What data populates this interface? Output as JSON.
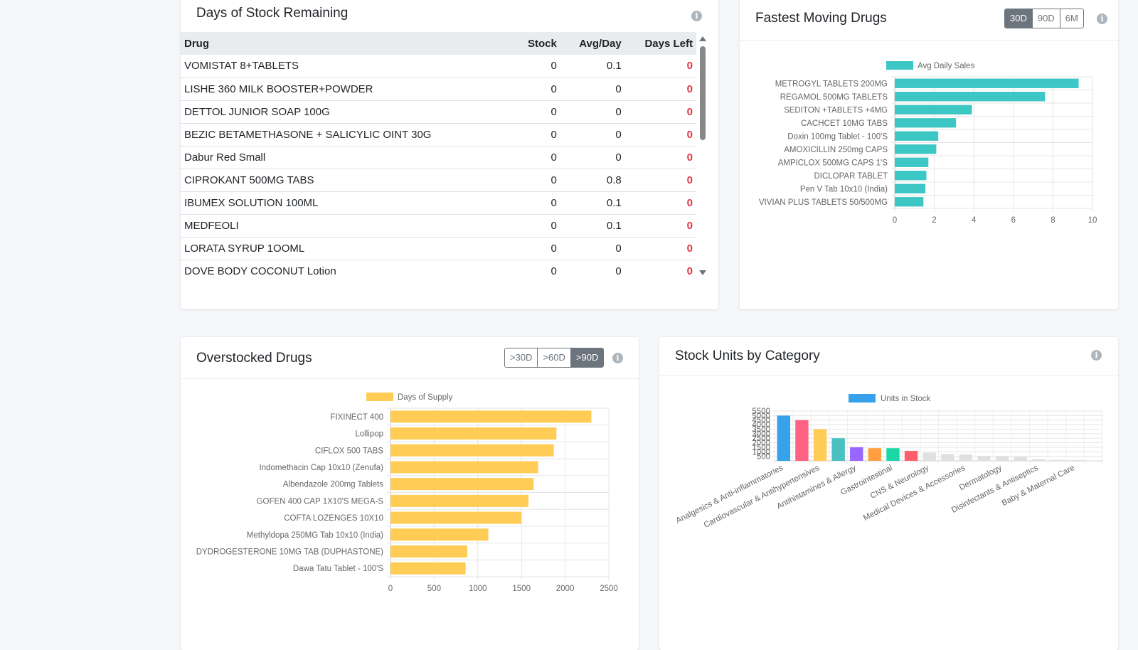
{
  "days_stock": {
    "title": "Days of Stock Remaining",
    "columns": [
      "Drug",
      "Stock",
      "Avg/Day",
      "Days Left"
    ],
    "rows": [
      {
        "drug": "VOMISTAT 8+TABLETS",
        "stock": "0",
        "avg": "0.1",
        "days": "0"
      },
      {
        "drug": "LISHE 360 MILK BOOSTER+POWDER",
        "stock": "0",
        "avg": "0",
        "days": "0"
      },
      {
        "drug": "DETTOL JUNIOR SOAP 100G",
        "stock": "0",
        "avg": "0",
        "days": "0"
      },
      {
        "drug": "BEZIC BETAMETHASONE + SALICYLIC OINT 30G",
        "stock": "0",
        "avg": "0",
        "days": "0"
      },
      {
        "drug": "Dabur Red Small",
        "stock": "0",
        "avg": "0",
        "days": "0"
      },
      {
        "drug": "CIPROKANT 500MG TABS",
        "stock": "0",
        "avg": "0.8",
        "days": "0"
      },
      {
        "drug": "IBUMEX SOLUTION 100ML",
        "stock": "0",
        "avg": "0.1",
        "days": "0"
      },
      {
        "drug": "MEDFEOLI",
        "stock": "0",
        "avg": "0.1",
        "days": "0"
      },
      {
        "drug": "LORATA SYRUP 1OOML",
        "stock": "0",
        "avg": "0",
        "days": "0"
      },
      {
        "drug": "DOVE BODY COCONUT Lotion",
        "stock": "0",
        "avg": "0",
        "days": "0"
      }
    ]
  },
  "fastest": {
    "title": "Fastest Moving Drugs",
    "buttons": [
      "30D",
      "90D",
      "6M"
    ],
    "active": "30D"
  },
  "overstock": {
    "title": "Overstocked Drugs",
    "buttons": [
      ">30D",
      ">60D",
      ">90D"
    ],
    "active": ">90D"
  },
  "category": {
    "title": "Stock Units by Category"
  },
  "colors": {
    "teal": "#3cc6c4",
    "yellow": "#ffcd56",
    "blue": "#36a2eb",
    "active_button": "#6c757d",
    "danger": "#dc3545"
  },
  "chart_data": [
    {
      "type": "bar",
      "orientation": "horizontal",
      "categories": [
        "METROGYL TABLETS 200MG",
        "REGAMOL 500MG TABLETS",
        "SEDITON  +TABLETS +4MG",
        "CACHCET 10MG TABS",
        "Doxin 100mg Tablet - 100'S",
        "AMOXICILLIN 250mg CAPS",
        "AMPICLOX 500MG CAPS 1'S",
        "DICLOPAR TABLET",
        "Pen V Tab 10x10 (India)",
        "VIVIAN PLUS TABLETS  50/500MG"
      ],
      "series": [
        {
          "name": "Avg Daily Sales",
          "values": [
            9.3,
            7.6,
            3.9,
            3.1,
            2.2,
            2.1,
            1.7,
            1.6,
            1.55,
            1.45
          ]
        }
      ],
      "xlim": [
        0,
        10
      ],
      "xticks": [
        "0",
        "2",
        "4",
        "6",
        "8",
        "10"
      ],
      "grid": true,
      "legend": "top"
    },
    {
      "type": "bar",
      "orientation": "horizontal",
      "categories": [
        "FIXINECT 400",
        "Lollipop",
        "CIFLOX 500 TABS",
        "Indomethacin Cap 10x10 (Zenufa)",
        "Albendazole 200mg Tablets",
        "GOFEN 400 CAP 1X10'S MEGA-S",
        "COFTA LOZENGES 10X10",
        "Methyldopa 250MG Tab 10x10 (India)",
        "DYDROGESTERONE 10MG TAB (DUPHASTONE)",
        "Dawa Tatu Tablet - 100'S"
      ],
      "series": [
        {
          "name": "Days of Supply",
          "values": [
            2300,
            1900,
            1870,
            1690,
            1640,
            1580,
            1500,
            1120,
            880,
            860
          ]
        }
      ],
      "xlim": [
        0,
        2500
      ],
      "xticks": [
        "0",
        "500",
        "1000",
        "1500",
        "2000",
        "2500"
      ],
      "grid": true,
      "legend": "top"
    },
    {
      "type": "bar",
      "categories": [
        "Analgesics & Anti-inflammatories",
        "",
        "Cardiovascular & Antihypertensives",
        "",
        "Antihistamines & Allergy",
        "",
        "Gastrointestinal",
        "",
        "CNS & Neurology",
        "",
        "Medical Devices & Accessories",
        "",
        "Dermatology",
        "",
        "Disinfectants & Antiseptics",
        "",
        "Baby & Maternal Care",
        ""
      ],
      "series": [
        {
          "name": "Units in Stock",
          "values": [
            5000,
            4500,
            3500,
            2500,
            1500,
            1400,
            1400,
            1100,
            900,
            750,
            700,
            550,
            480,
            430,
            180,
            100,
            80,
            40
          ]
        }
      ],
      "bar_colors": [
        "#36a2eb",
        "#ff6384",
        "#ffcd56",
        "#4bc0c0",
        "#9966ff",
        "#ff9f40",
        "#1ad9a6",
        "#ff5f6d",
        "#e0e0e0",
        "#e0e0e0",
        "#e0e0e0",
        "#e0e0e0",
        "#e0e0e0",
        "#e0e0e0",
        "#e0e0e0",
        "#e0e0e0",
        "#e0e0e0",
        "#e0e0e0"
      ],
      "ylim": [
        0,
        5500
      ],
      "yticks": [
        "500",
        "1000",
        "1500",
        "2000",
        "2500",
        "3000",
        "3500",
        "4000",
        "4500",
        "5000",
        "5500"
      ],
      "grid": true,
      "legend": "top"
    }
  ]
}
